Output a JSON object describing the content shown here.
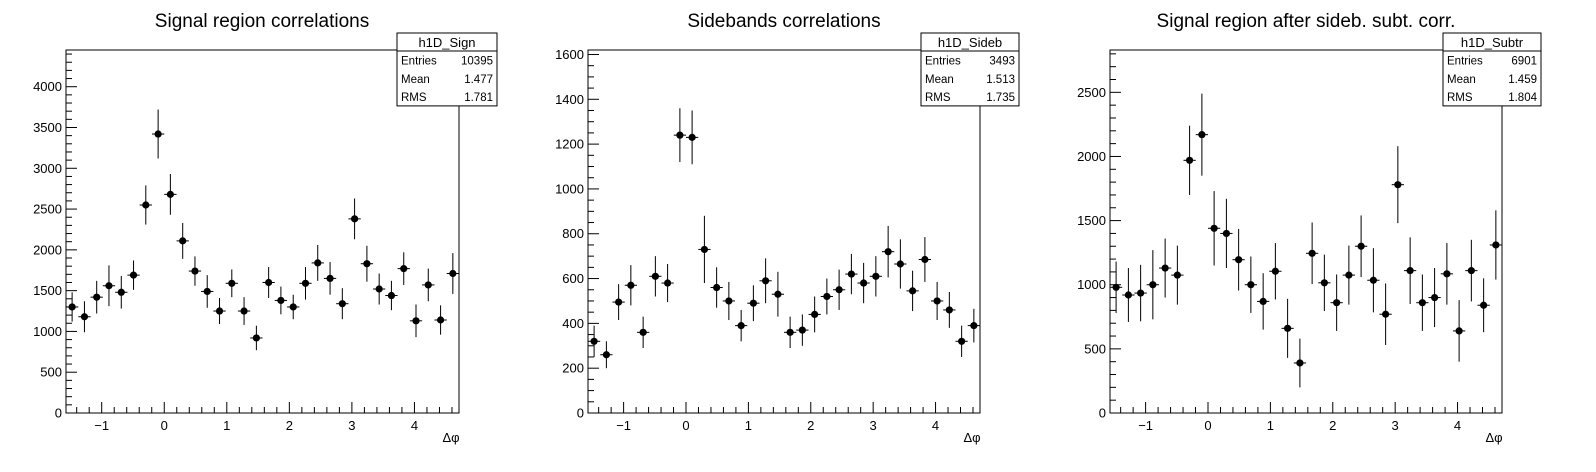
{
  "chart_data": [
    {
      "type": "scatter",
      "title": "Signal region correlations",
      "xlabel": "Δφ",
      "ylabel": "",
      "xlim": [
        -1.5708,
        4.7124
      ],
      "ylim": [
        0,
        4450
      ],
      "xticks": [
        "−1",
        "0",
        "1",
        "2",
        "3",
        "4"
      ],
      "yticks": [
        "0",
        "500",
        "1000",
        "1500",
        "2000",
        "2500",
        "3000",
        "3500",
        "4000"
      ],
      "stats": {
        "name": "h1D_Sign",
        "rows": [
          {
            "label": "Entries",
            "value": "10395"
          },
          {
            "label": "Mean",
            "value": "1.477"
          },
          {
            "label": "RMS",
            "value": "1.781"
          }
        ]
      },
      "bin_width": 0.19635,
      "x": [
        -1.473,
        -1.276,
        -1.08,
        -0.884,
        -0.687,
        -0.491,
        -0.295,
        -0.098,
        0.098,
        0.295,
        0.491,
        0.687,
        0.884,
        1.08,
        1.276,
        1.473,
        1.669,
        1.865,
        2.062,
        2.258,
        2.454,
        2.651,
        2.847,
        3.043,
        3.24,
        3.436,
        3.632,
        3.829,
        4.025,
        4.221,
        4.418,
        4.614
      ],
      "y": [
        1300,
        1180,
        1420,
        1560,
        1480,
        1690,
        2550,
        3420,
        2680,
        2110,
        1740,
        1490,
        1250,
        1590,
        1250,
        920,
        1600,
        1380,
        1300,
        1590,
        1840,
        1650,
        1340,
        2380,
        1830,
        1520,
        1440,
        1770,
        1130,
        1570,
        1140,
        1710
      ],
      "yerr": [
        180,
        190,
        200,
        250,
        200,
        180,
        240,
        300,
        250,
        220,
        180,
        200,
        160,
        170,
        170,
        150,
        190,
        170,
        150,
        200,
        220,
        200,
        190,
        250,
        220,
        190,
        180,
        200,
        200,
        200,
        180,
        250
      ]
    },
    {
      "type": "scatter",
      "title": "Sidebands correlations",
      "xlabel": "Δφ",
      "ylabel": "",
      "xlim": [
        -1.5708,
        4.7124
      ],
      "ylim": [
        0,
        1620
      ],
      "xticks": [
        "−1",
        "0",
        "1",
        "2",
        "3",
        "4"
      ],
      "yticks": [
        "0",
        "200",
        "400",
        "600",
        "800",
        "1000",
        "1200",
        "1400",
        "1600"
      ],
      "stats": {
        "name": "h1D_Sideb",
        "rows": [
          {
            "label": "Entries",
            "value": "3493"
          },
          {
            "label": "Mean",
            "value": "1.513"
          },
          {
            "label": "RMS",
            "value": "1.735"
          }
        ]
      },
      "bin_width": 0.19635,
      "x": [
        -1.473,
        -1.276,
        -1.08,
        -0.884,
        -0.687,
        -0.491,
        -0.295,
        -0.098,
        0.098,
        0.295,
        0.491,
        0.687,
        0.884,
        1.08,
        1.276,
        1.473,
        1.669,
        1.865,
        2.062,
        2.258,
        2.454,
        2.651,
        2.847,
        3.043,
        3.24,
        3.436,
        3.632,
        3.829,
        4.025,
        4.221,
        4.418,
        4.614
      ],
      "y": [
        320,
        260,
        495,
        570,
        360,
        610,
        580,
        1240,
        1230,
        730,
        560,
        500,
        390,
        490,
        590,
        530,
        360,
        370,
        440,
        520,
        550,
        620,
        580,
        610,
        720,
        665,
        545,
        685,
        500,
        460,
        320,
        390
      ],
      "yerr": [
        70,
        60,
        80,
        90,
        70,
        90,
        85,
        120,
        120,
        150,
        90,
        85,
        70,
        80,
        100,
        100,
        70,
        70,
        80,
        80,
        90,
        90,
        90,
        90,
        115,
        110,
        90,
        100,
        85,
        80,
        70,
        75
      ]
    },
    {
      "type": "scatter",
      "title": "Signal region after sideb. subt. corr.",
      "xlabel": "Δφ",
      "ylabel": "",
      "xlim": [
        -1.5708,
        4.7124
      ],
      "ylim": [
        0,
        2830
      ],
      "xticks": [
        "−1",
        "0",
        "1",
        "2",
        "3",
        "4"
      ],
      "yticks": [
        "0",
        "500",
        "1000",
        "1500",
        "2000",
        "2500"
      ],
      "stats": {
        "name": "h1D_Subtr",
        "rows": [
          {
            "label": "Entries",
            "value": "6901"
          },
          {
            "label": "Mean",
            "value": "1.459"
          },
          {
            "label": "RMS",
            "value": "1.804"
          }
        ]
      },
      "bin_width": 0.19635,
      "x": [
        -1.473,
        -1.276,
        -1.08,
        -0.884,
        -0.687,
        -0.491,
        -0.295,
        -0.098,
        0.098,
        0.295,
        0.491,
        0.687,
        0.884,
        1.08,
        1.276,
        1.473,
        1.669,
        1.865,
        2.062,
        2.258,
        2.454,
        2.651,
        2.847,
        3.043,
        3.24,
        3.436,
        3.632,
        3.829,
        4.025,
        4.221,
        4.418,
        4.614
      ],
      "y": [
        980,
        920,
        935,
        1000,
        1130,
        1075,
        1970,
        2170,
        1440,
        1400,
        1195,
        1000,
        870,
        1105,
        660,
        390,
        1245,
        1015,
        860,
        1075,
        1300,
        1035,
        770,
        1780,
        1110,
        860,
        900,
        1085,
        640,
        1110,
        840,
        1310
      ],
      "yerr": [
        200,
        210,
        220,
        270,
        230,
        230,
        270,
        320,
        290,
        270,
        240,
        220,
        220,
        220,
        230,
        190,
        240,
        220,
        220,
        230,
        240,
        250,
        240,
        300,
        260,
        220,
        230,
        240,
        240,
        240,
        210,
        270
      ]
    }
  ]
}
